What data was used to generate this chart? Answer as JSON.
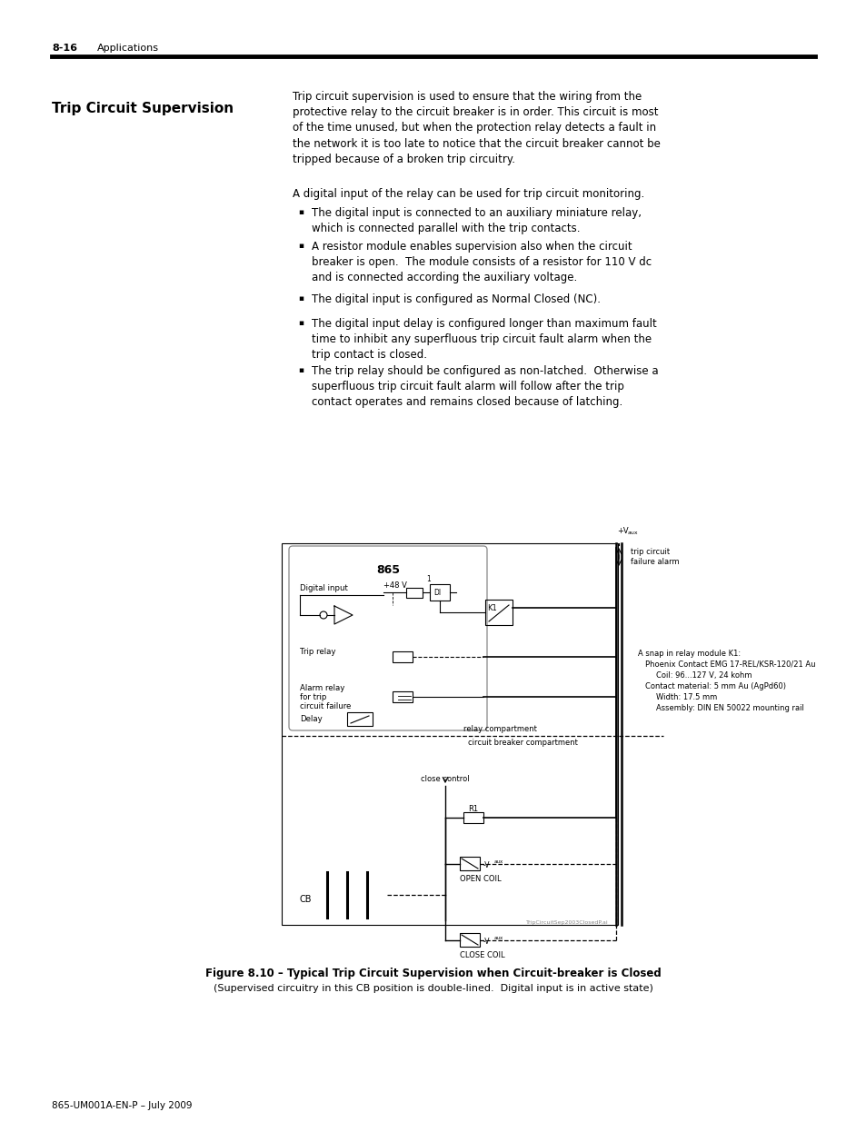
{
  "page_header_number": "8-16",
  "page_header_text": "Applications",
  "section_title": "Trip Circuit Supervision",
  "para1": "Trip circuit supervision is used to ensure that the wiring from the\nprotective relay to the circuit breaker is in order. This circuit is most\nof the time unused, but when the protection relay detects a fault in\nthe network it is too late to notice that the circuit breaker cannot be\ntripped because of a broken trip circuitry.",
  "para2": "A digital input of the relay can be used for trip circuit monitoring.",
  "bullets": [
    "The digital input is connected to an auxiliary miniature relay,\nwhich is connected parallel with the trip contacts.",
    "A resistor module enables supervision also when the circuit\nbreaker is open.  The module consists of a resistor for 110 V dc\nand is connected according the auxiliary voltage.",
    "The digital input is configured as Normal Closed (NC).",
    "The digital input delay is configured longer than maximum fault\ntime to inhibit any superfluous trip circuit fault alarm when the\ntrip contact is closed.",
    "The trip relay should be configured as non-latched.  Otherwise a\nsuperfluous trip circuit fault alarm will follow after the trip\ncontact operates and remains closed because of latching."
  ],
  "figure_caption_line1": "Figure 8.10 – Typical Trip Circuit Supervision when Circuit-breaker is Closed",
  "figure_caption_line2": "(Supervised circuitry in this CB position is double-lined.  Digital input is in active state)",
  "footer_text": "865-UM001A-EN-P – July 2009",
  "relay_info_line1": "A snap in relay module K1:",
  "relay_info_line2": "Phoenix Contact EMG 17-REL/KSR-120/21 Au",
  "relay_info_line3": "Coil: 96...127 V, 24 kohm",
  "relay_info_line4": "Contact material: 5 mm Au (AgPd60)",
  "relay_info_line5": "Width: 17.5 mm",
  "relay_info_line6": "Assembly: DIN EN 50022 mounting rail",
  "watermark": "TripCircuitSep2003ClosedP.ai",
  "bg_color": "#ffffff"
}
